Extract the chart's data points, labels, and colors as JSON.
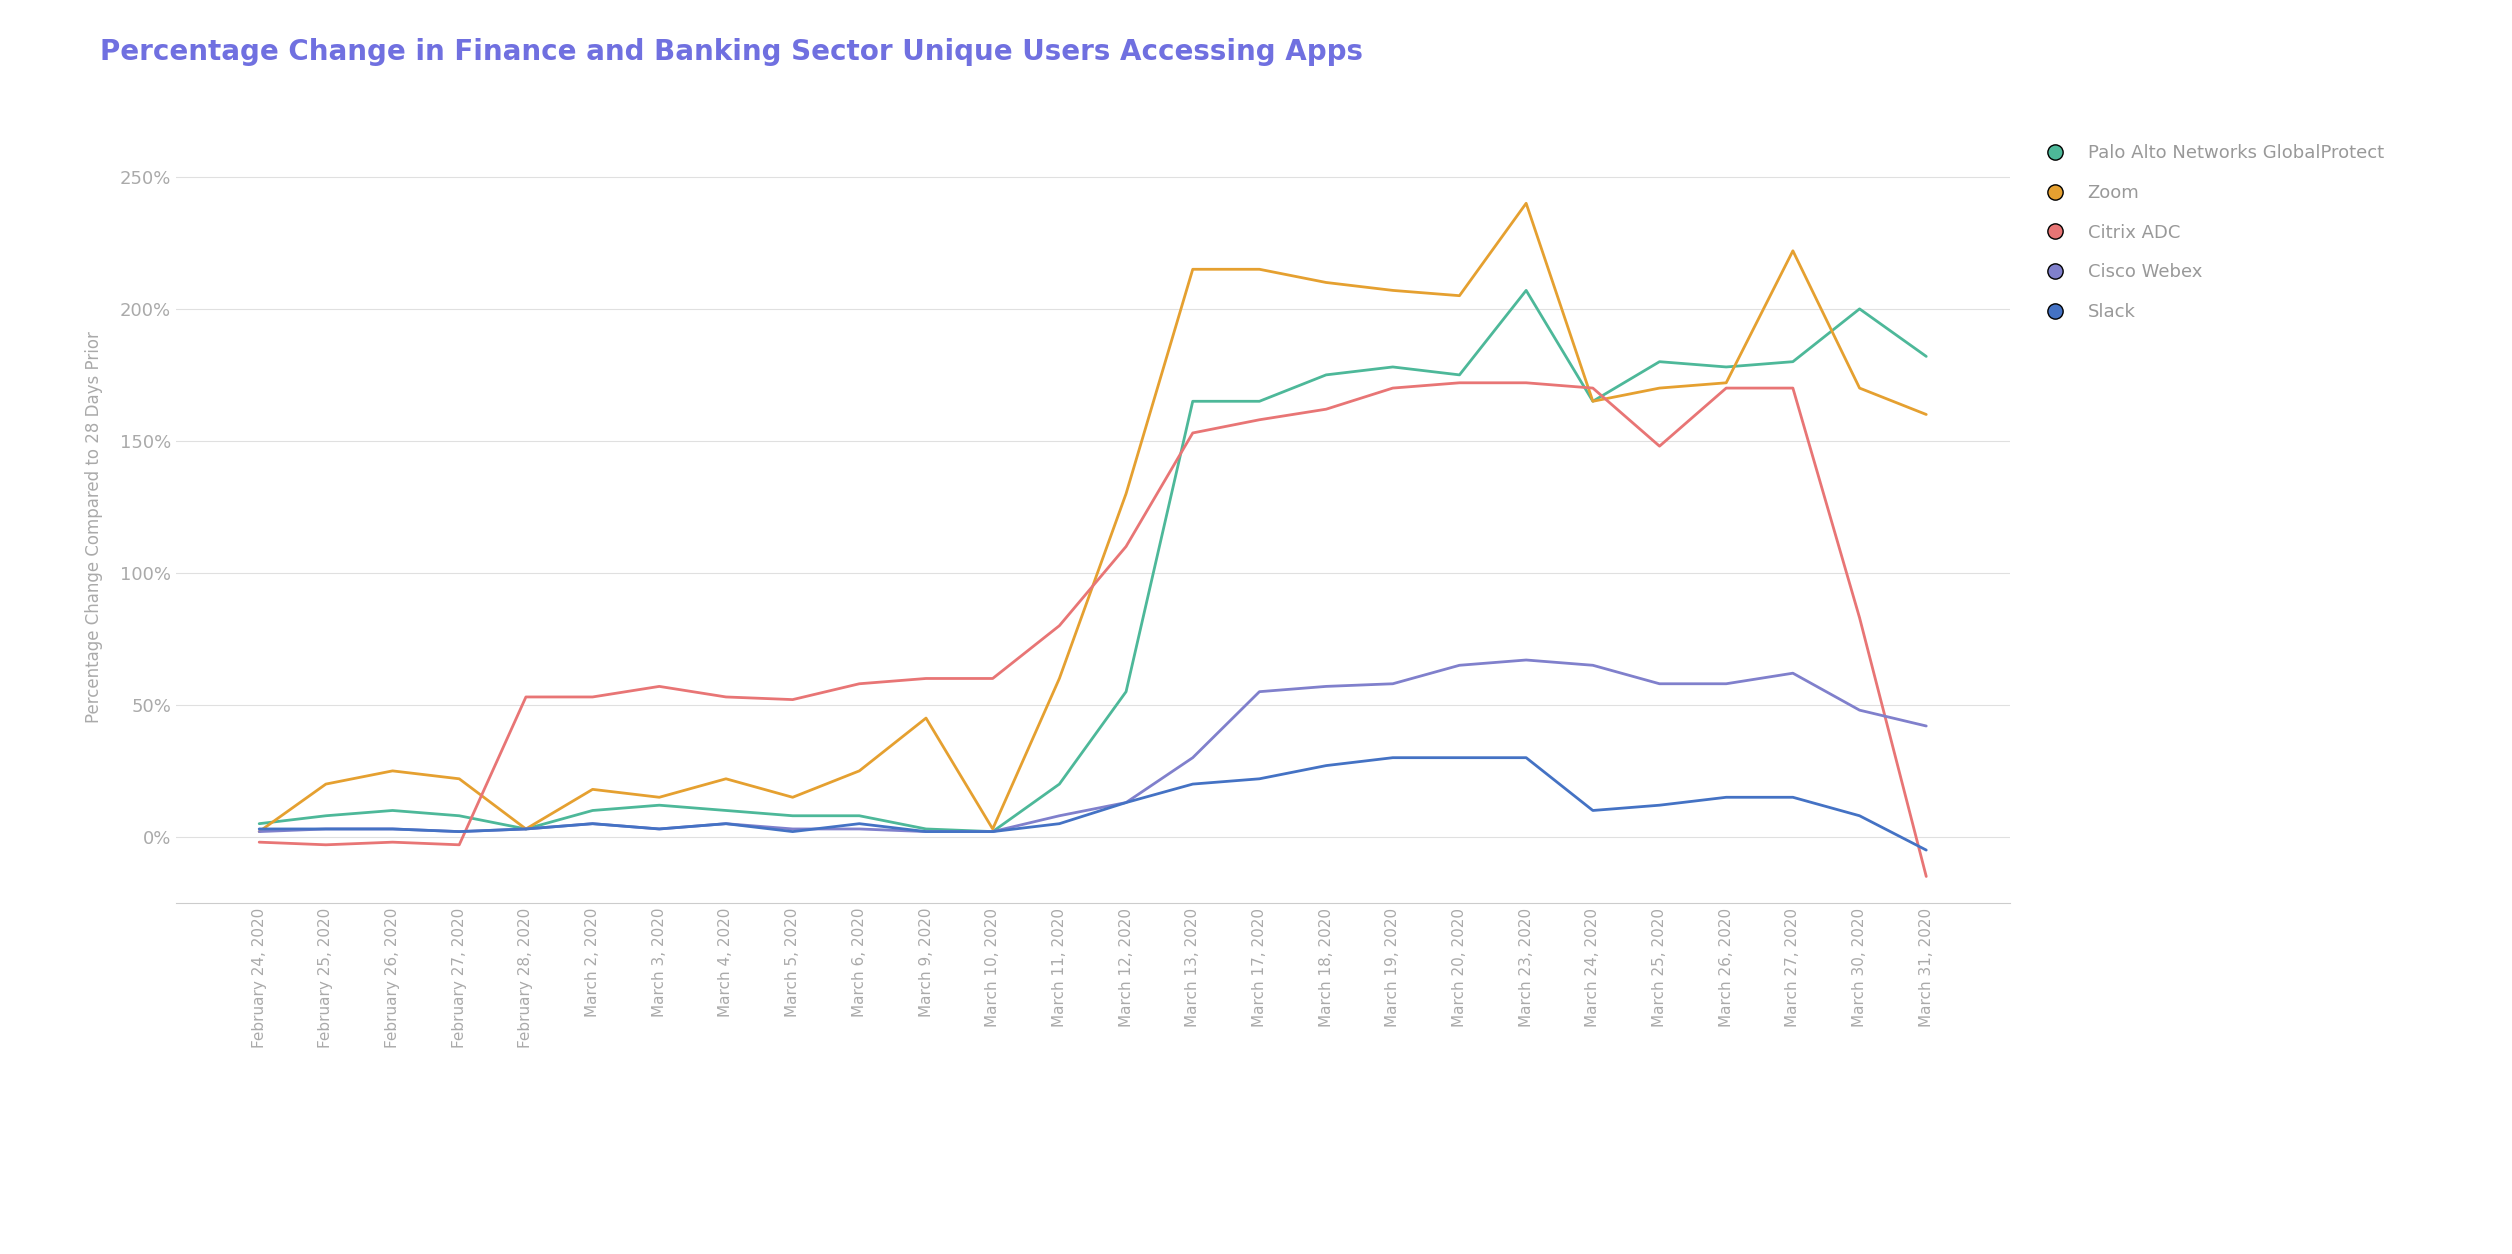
{
  "title": "Percentage Change in Finance and Banking Sector Unique Users Accessing Apps",
  "ylabel": "Percentage Change Compared to 28 Days Prior",
  "title_color": "#7070E0",
  "ylabel_color": "#aaaaaa",
  "background_color": "#ffffff",
  "grid_color": "#e0e0e0",
  "dates": [
    "February 24, 2020",
    "February 25, 2020",
    "February 26, 2020",
    "February 27, 2020",
    "February 28, 2020",
    "March 2, 2020",
    "March 3, 2020",
    "March 4, 2020",
    "March 5, 2020",
    "March 6, 2020",
    "March 9, 2020",
    "March 10, 2020",
    "March 11, 2020",
    "March 12, 2020",
    "March 13, 2020",
    "March 17, 2020",
    "March 18, 2020",
    "March 19, 2020",
    "March 20, 2020",
    "March 23, 2020",
    "March 24, 2020",
    "March 25, 2020",
    "March 26, 2020",
    "March 27, 2020",
    "March 30, 2020",
    "March 31, 2020"
  ],
  "series": {
    "Palo Alto Networks GlobalProtect": {
      "color": "#4DB899",
      "data": [
        5,
        8,
        10,
        8,
        3,
        10,
        12,
        10,
        8,
        8,
        3,
        2,
        20,
        55,
        165,
        165,
        175,
        178,
        175,
        207,
        165,
        180,
        178,
        180,
        200,
        182
      ]
    },
    "Zoom": {
      "color": "#E5A030",
      "data": [
        2,
        20,
        25,
        22,
        3,
        18,
        15,
        22,
        15,
        25,
        45,
        3,
        60,
        130,
        215,
        215,
        210,
        207,
        205,
        240,
        165,
        170,
        172,
        222,
        170,
        160
      ]
    },
    "Citrix ADC": {
      "color": "#E87575",
      "data": [
        -2,
        -3,
        -2,
        -3,
        53,
        53,
        57,
        53,
        52,
        58,
        60,
        60,
        80,
        110,
        153,
        158,
        162,
        170,
        172,
        172,
        170,
        148,
        170,
        170,
        83,
        -15
      ]
    },
    "Cisco Webex": {
      "color": "#8080CC",
      "data": [
        2,
        3,
        3,
        2,
        3,
        5,
        3,
        5,
        3,
        3,
        2,
        2,
        8,
        13,
        30,
        55,
        57,
        58,
        65,
        67,
        65,
        58,
        58,
        62,
        48,
        42
      ]
    },
    "Slack": {
      "color": "#4472C4",
      "data": [
        3,
        3,
        3,
        2,
        3,
        5,
        3,
        5,
        2,
        5,
        2,
        2,
        5,
        13,
        20,
        22,
        27,
        30,
        30,
        30,
        10,
        12,
        15,
        15,
        8,
        -5
      ]
    }
  },
  "ylim": [
    -25,
    260
  ],
  "yticks": [
    0,
    50,
    100,
    150,
    200,
    250
  ],
  "legend_order": [
    "Palo Alto Networks GlobalProtect",
    "Zoom",
    "Citrix ADC",
    "Cisco Webex",
    "Slack"
  ]
}
